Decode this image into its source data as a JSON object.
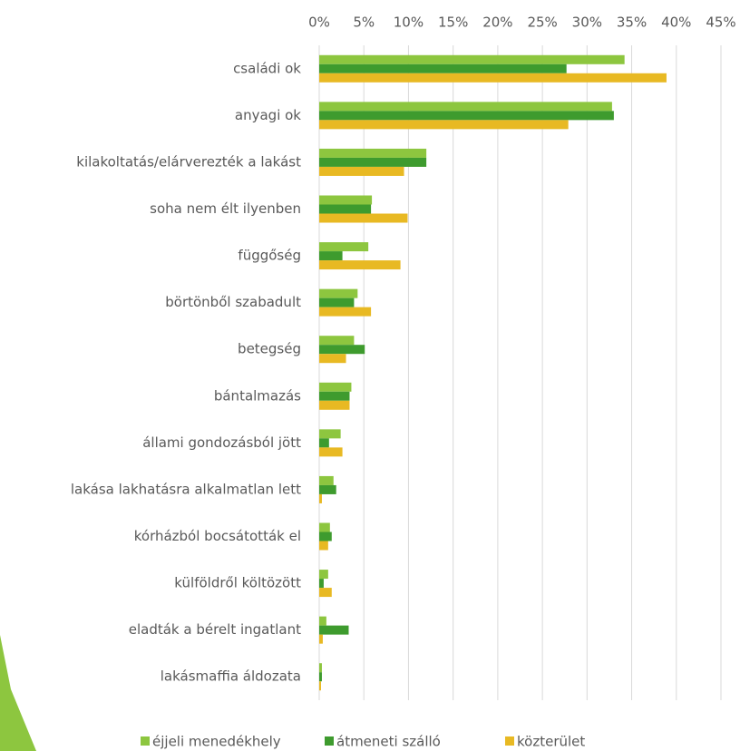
{
  "chart_data": {
    "type": "bar",
    "orientation": "horizontal",
    "categories": [
      "családi ok",
      "anyagi ok",
      "kilakoltatás/elárverezték a lakást",
      "soha nem élt ilyenben",
      "függőség",
      "börtönből szabadult",
      "betegség",
      "bántalmazás",
      "állami gondozásból jött",
      "lakása lakhatásra alkalmatlan lett",
      "kórházból bocsátották el",
      "külföldről költözött",
      "eladták a bérelt ingatlant",
      "lakásmaffia áldozata"
    ],
    "series": [
      {
        "name": "éjjeli menedékhely",
        "color": "#8dc63f",
        "values": [
          34.2,
          32.8,
          12.0,
          5.9,
          5.5,
          4.3,
          3.9,
          3.6,
          2.4,
          1.6,
          1.2,
          1.0,
          0.8,
          0.3
        ]
      },
      {
        "name": "átmeneti szálló",
        "color": "#3e9b2e",
        "values": [
          27.7,
          33.0,
          12.0,
          5.8,
          2.6,
          3.9,
          5.1,
          3.4,
          1.1,
          1.9,
          1.4,
          0.5,
          3.3,
          0.3
        ]
      },
      {
        "name": "közterület",
        "color": "#e8b923",
        "values": [
          38.9,
          27.9,
          9.5,
          9.9,
          9.1,
          5.8,
          3.0,
          3.4,
          2.6,
          0.3,
          1.0,
          1.4,
          0.4,
          0.2
        ]
      }
    ],
    "xlim": [
      0,
      45
    ],
    "xticks": [
      {
        "value": 0,
        "label": "0%"
      },
      {
        "value": 5,
        "label": "5%"
      },
      {
        "value": 10,
        "label": "10%"
      },
      {
        "value": 15,
        "label": "15%"
      },
      {
        "value": 20,
        "label": "20%"
      },
      {
        "value": 25,
        "label": "25%"
      },
      {
        "value": 30,
        "label": "30%"
      },
      {
        "value": 35,
        "label": "35%"
      },
      {
        "value": 40,
        "label": "40%"
      },
      {
        "value": 45,
        "label": "45%"
      }
    ],
    "grid": true,
    "legend": "bottom"
  }
}
